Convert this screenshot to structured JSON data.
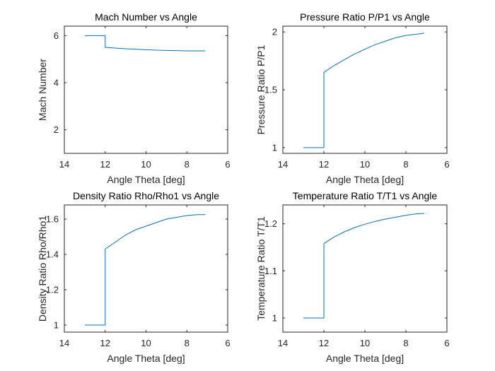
{
  "chart_data": [
    {
      "type": "line",
      "title": "Mach Number vs Angle",
      "xlabel": "Angle Theta [deg]",
      "ylabel": "Mach Number",
      "xlim": [
        14,
        6
      ],
      "ylim": [
        1,
        6.4
      ],
      "xticks": [
        14,
        12,
        10,
        8,
        6
      ],
      "yticks": [
        2,
        4,
        6
      ],
      "x": [
        13,
        12,
        12,
        11.5,
        11,
        10.5,
        10,
        9.5,
        9,
        8.5,
        8,
        7.5,
        7.1
      ],
      "y": [
        6.0,
        6.0,
        5.5,
        5.47,
        5.44,
        5.42,
        5.4,
        5.38,
        5.37,
        5.36,
        5.35,
        5.35,
        5.35
      ]
    },
    {
      "type": "line",
      "title": "Pressure Ratio P/P1 vs Angle",
      "xlabel": "Angle Theta [deg]",
      "ylabel": "Pressure Ratio P/P1",
      "xlim": [
        14,
        6
      ],
      "ylim": [
        0.95,
        2.05
      ],
      "xticks": [
        14,
        12,
        10,
        8,
        6
      ],
      "yticks": [
        1,
        1.5,
        2
      ],
      "x": [
        13,
        12,
        12,
        11.5,
        11,
        10.5,
        10,
        9.5,
        9,
        8.5,
        8,
        7.5,
        7.1
      ],
      "y": [
        1.0,
        1.0,
        1.65,
        1.71,
        1.76,
        1.81,
        1.85,
        1.89,
        1.92,
        1.95,
        1.97,
        1.98,
        1.99
      ]
    },
    {
      "type": "line",
      "title": "Density Ratio Rho/Rho1 vs Angle",
      "xlabel": "Angle Theta [deg]",
      "ylabel": "Density Ratio Rho/Rho1",
      "xlim": [
        14,
        6
      ],
      "ylim": [
        0.96,
        1.68
      ],
      "xticks": [
        14,
        12,
        10,
        8,
        6
      ],
      "yticks": [
        1,
        1.2,
        1.4,
        1.6
      ],
      "x": [
        13,
        12,
        12,
        11.5,
        11,
        10.5,
        10,
        9.5,
        9,
        8.5,
        8,
        7.5,
        7.1
      ],
      "y": [
        1.0,
        1.0,
        1.43,
        1.47,
        1.51,
        1.54,
        1.56,
        1.58,
        1.6,
        1.61,
        1.62,
        1.625,
        1.625
      ]
    },
    {
      "type": "line",
      "title": "Temperature Ratio T/T1 vs Angle",
      "xlabel": "Angle Theta [deg]",
      "ylabel": "Temperature Ratio T/T1",
      "xlim": [
        14,
        6
      ],
      "ylim": [
        0.97,
        1.24
      ],
      "xticks": [
        14,
        12,
        10,
        8,
        6
      ],
      "yticks": [
        1,
        1.1,
        1.2
      ],
      "x": [
        13,
        12,
        12,
        11.5,
        11,
        10.5,
        10,
        9.5,
        9,
        8.5,
        8,
        7.5,
        7.1
      ],
      "y": [
        1.0,
        1.0,
        1.158,
        1.172,
        1.183,
        1.192,
        1.199,
        1.205,
        1.21,
        1.214,
        1.218,
        1.221,
        1.222
      ]
    }
  ]
}
